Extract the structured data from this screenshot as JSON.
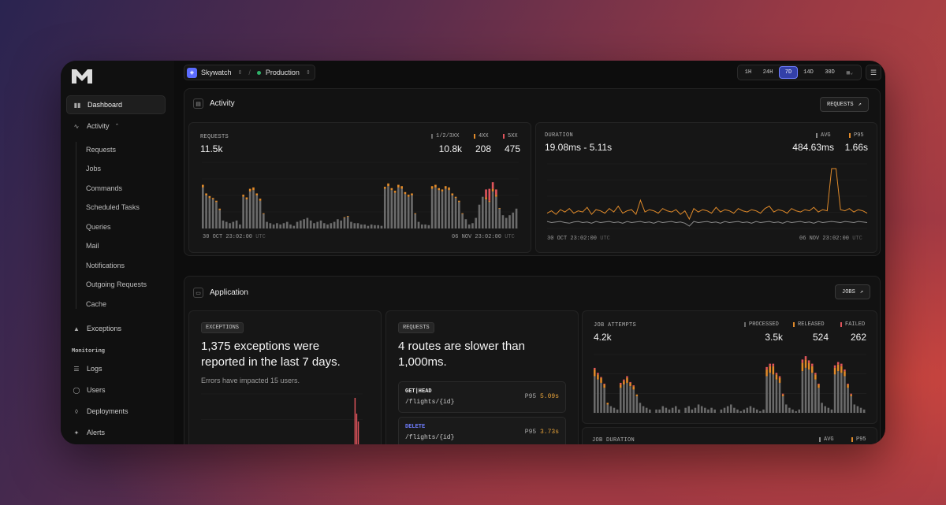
{
  "colors": {
    "accent": "#5b6cff",
    "gray": "#6b6b6b",
    "warn": "#e08a2a",
    "error": "#e0545c",
    "env": "#2fb36a"
  },
  "sidebar": {
    "items": [
      {
        "label": "Dashboard",
        "icon": "chart-icon"
      },
      {
        "label": "Activity",
        "icon": "activity-icon"
      },
      {
        "label": "Exceptions",
        "icon": "warning-icon"
      }
    ],
    "activity_sub": [
      "Requests",
      "Jobs",
      "Commands",
      "Scheduled Tasks",
      "Queries",
      "Mail",
      "Notifications",
      "Outgoing Requests",
      "Cache"
    ],
    "monitoring_label": "Monitoring",
    "monitoring": [
      {
        "label": "Logs",
        "icon": "logs-icon"
      },
      {
        "label": "Users",
        "icon": "user-icon"
      },
      {
        "label": "Deployments",
        "icon": "deploy-icon"
      },
      {
        "label": "Alerts",
        "icon": "alert-icon"
      }
    ]
  },
  "topbar": {
    "project": "Skywatch",
    "separator": "/",
    "environment": "Production",
    "ranges": [
      "1H",
      "24H",
      "7D",
      "14D",
      "30D"
    ],
    "active_range": "7D"
  },
  "activity": {
    "title": "Activity",
    "button": "REQUESTS",
    "requests": {
      "label": "REQUESTS",
      "total": "11.5k",
      "legend": [
        {
          "label": "1/2/3XX",
          "value": "10.8k"
        },
        {
          "label": "4XX",
          "value": "208"
        },
        {
          "label": "5XX",
          "value": "475"
        }
      ],
      "x_start": "30 OCT 23:02:00",
      "x_end": "06 NOV 23:02:00",
      "tz": "UTC",
      "chart_data": {
        "type": "bar",
        "stacked": true,
        "series": [
          {
            "name": "1/2/3XX",
            "values": [
              62,
              50,
              46,
              44,
              40,
              28,
              12,
              10,
              8,
              10,
              12,
              6,
              48,
              44,
              56,
              58,
              50,
              42,
              22,
              10,
              8,
              6,
              8,
              6,
              8,
              10,
              6,
              4,
              10,
              12,
              14,
              16,
              12,
              8,
              10,
              12,
              8,
              6,
              8,
              10,
              14,
              12,
              16,
              18,
              10,
              8,
              8,
              6,
              6,
              4,
              6,
              5,
              5,
              4,
              60,
              64,
              58,
              54,
              62,
              60,
              52,
              48,
              50,
              22,
              10,
              6,
              6,
              5,
              60,
              62,
              58,
              56,
              60,
              58,
              50,
              46,
              40,
              22,
              14,
              6,
              8,
              16,
              36,
              48,
              44,
              40,
              56,
              48,
              30,
              20,
              16,
              20,
              24,
              30
            ]
          },
          {
            "name": "4XX",
            "values": [
              4,
              3,
              3,
              2,
              2,
              2,
              0,
              0,
              0,
              0,
              0,
              0,
              3,
              3,
              4,
              4,
              3,
              3,
              1,
              0,
              0,
              0,
              0,
              0,
              0,
              0,
              0,
              0,
              0,
              0,
              0,
              0,
              0,
              0,
              0,
              0,
              0,
              0,
              0,
              0,
              0,
              0,
              1,
              1,
              0,
              0,
              0,
              0,
              0,
              0,
              0,
              0,
              0,
              0,
              3,
              4,
              3,
              3,
              4,
              4,
              3,
              3,
              3,
              1,
              0,
              0,
              0,
              0,
              4,
              4,
              3,
              3,
              4,
              4,
              3,
              2,
              2,
              1,
              0,
              0,
              0,
              0,
              0,
              0,
              3,
              2,
              4,
              3,
              1,
              0,
              0,
              0,
              0,
              0
            ]
          },
          {
            "name": "5XX",
            "values": [
              0,
              0,
              0,
              0,
              0,
              0,
              0,
              0,
              0,
              0,
              0,
              0,
              0,
              0,
              0,
              0,
              0,
              0,
              0,
              0,
              0,
              0,
              0,
              0,
              0,
              0,
              0,
              0,
              0,
              0,
              0,
              0,
              0,
              0,
              0,
              0,
              0,
              0,
              0,
              0,
              0,
              0,
              0,
              0,
              0,
              0,
              0,
              0,
              0,
              0,
              0,
              0,
              0,
              0,
              0,
              0,
              0,
              0,
              0,
              0,
              0,
              0,
              0,
              0,
              0,
              0,
              0,
              0,
              0,
              0,
              0,
              0,
              0,
              0,
              0,
              0,
              0,
              0,
              0,
              0,
              0,
              0,
              0,
              0,
              12,
              18,
              10,
              8,
              0,
              0,
              0,
              0,
              0,
              0
            ]
          }
        ]
      }
    },
    "duration": {
      "label": "DURATION",
      "range": "19.08ms - 5.11s",
      "legend": [
        {
          "label": "AVG",
          "value": "484.63ms"
        },
        {
          "label": "P95",
          "value": "1.66s"
        }
      ],
      "x_start": "30 OCT 23:02:00",
      "x_end": "06 NOV 23:02:00",
      "tz": "UTC",
      "chart_data": {
        "type": "line",
        "series": [
          {
            "name": "P95",
            "values": [
              1.3,
              1.5,
              1.2,
              1.6,
              1.4,
              1.7,
              1.3,
              1.5,
              1.4,
              1.8,
              1.2,
              1.6,
              1.5,
              1.3,
              1.7,
              1.4,
              1.9,
              1.3,
              1.5,
              1.6,
              1.2,
              2.4,
              1.4,
              1.6,
              1.5,
              1.3,
              1.7,
              1.5,
              1.4,
              1.6,
              1.2,
              1.5,
              0.8,
              1.7,
              1.4,
              1.6,
              1.5,
              1.3,
              1.8,
              1.4,
              1.6,
              1.5,
              1.3,
              1.7,
              1.5,
              1.4,
              1.6,
              1.5,
              1.3,
              1.7,
              1.9,
              1.4,
              1.6,
              1.5,
              1.3,
              1.7,
              1.5,
              1.4,
              1.6,
              1.5,
              1.8,
              1.4,
              1.6,
              1.5,
              5.1,
              5.1,
              1.6,
              1.5,
              1.7,
              1.4,
              1.6,
              1.5,
              1.3
            ]
          },
          {
            "name": "AVG",
            "values": [
              0.6,
              0.5,
              0.55,
              0.6,
              0.5,
              0.45,
              0.55,
              0.6,
              0.5,
              0.55,
              0.45,
              0.6,
              0.5,
              0.55,
              0.6,
              0.5,
              0.55,
              0.45,
              0.6,
              0.5,
              0.55,
              0.6,
              0.5,
              0.55,
              0.45,
              0.6,
              0.5,
              0.55,
              0.6,
              0.5,
              0.55,
              0.45,
              0.2,
              0.6,
              0.5,
              0.55,
              0.6,
              0.5,
              0.55,
              0.45,
              0.6,
              0.5,
              0.55,
              0.6,
              0.5,
              0.55,
              0.45,
              0.6,
              0.5,
              0.55,
              0.6,
              0.5,
              0.55,
              0.45,
              0.6,
              0.5,
              0.55,
              0.6,
              0.5,
              0.55,
              0.45,
              0.6,
              0.5,
              0.55,
              0.6,
              0.55,
              0.5,
              0.6,
              0.55,
              0.5,
              0.6,
              0.55,
              0.5
            ]
          }
        ],
        "ylim": [
          0,
          5.5
        ]
      }
    }
  },
  "application": {
    "title": "Application",
    "button": "JOBS",
    "exceptions": {
      "tag": "EXCEPTIONS",
      "headline": "1,375 exceptions were reported in the last 7 days.",
      "sub": "Errors have impacted 15 users.",
      "chart_data": {
        "type": "bar",
        "values": [
          0,
          0,
          0,
          0,
          0,
          0,
          0,
          0,
          0,
          0,
          0,
          0,
          0,
          0,
          0,
          0,
          0,
          0,
          0,
          0,
          0,
          0,
          0,
          0,
          0,
          0,
          0,
          0,
          0,
          0,
          0,
          0,
          0,
          0,
          0,
          0,
          0,
          0,
          0,
          0,
          0,
          0,
          0,
          0,
          0,
          0,
          0,
          0,
          0,
          0,
          0,
          0,
          0,
          0,
          0,
          0,
          0,
          0,
          0,
          0,
          0,
          0,
          0,
          0,
          0,
          0,
          0,
          0,
          0,
          0,
          0,
          0,
          0,
          0,
          0,
          0,
          0,
          0,
          0,
          0,
          0,
          0,
          0,
          0,
          0,
          0,
          0,
          0,
          0,
          0,
          0,
          0,
          0,
          0,
          60,
          40,
          30,
          0,
          0
        ]
      }
    },
    "requests": {
      "tag": "REQUESTS",
      "headline": "4 routes are slower than 1,000ms.",
      "routes": [
        {
          "method": "GET|HEAD",
          "path": "/flights/{id}",
          "metric": "P95",
          "value": "5.09s"
        },
        {
          "method": "DELETE",
          "path": "/flights/{id}",
          "metric": "P95",
          "value": "3.73s"
        }
      ]
    },
    "jobs": {
      "label": "JOB ATTEMPTS",
      "total": "4.2k",
      "legend": [
        {
          "label": "PROCESSED",
          "value": "3.5k"
        },
        {
          "label": "RELEASED",
          "value": "524"
        },
        {
          "label": "FAILED",
          "value": "262"
        }
      ],
      "chart_data": {
        "type": "bar",
        "stacked": true,
        "series": [
          {
            "name": "PROCESSED",
            "values": [
              44,
              40,
              36,
              30,
              10,
              8,
              6,
              4,
              30,
              34,
              36,
              32,
              28,
              20,
              12,
              8,
              6,
              4,
              0,
              4,
              4,
              8,
              6,
              4,
              6,
              8,
              4,
              0,
              6,
              8,
              4,
              6,
              10,
              8,
              6,
              4,
              6,
              4,
              0,
              4,
              6,
              8,
              10,
              6,
              4,
              2,
              4,
              6,
              8,
              6,
              4,
              2,
              4,
              44,
              48,
              46,
              40,
              36,
              20,
              10,
              6,
              4,
              2,
              4,
              50,
              54,
              52,
              48,
              40,
              30,
              12,
              8,
              6,
              4,
              46,
              50,
              48,
              44,
              30,
              20,
              10,
              8,
              6,
              4
            ]
          },
          {
            "name": "RELEASED",
            "values": [
              8,
              6,
              6,
              4,
              2,
              0,
              0,
              0,
              4,
              4,
              6,
              4,
              4,
              2,
              0,
              0,
              0,
              0,
              0,
              0,
              0,
              0,
              0,
              0,
              0,
              0,
              0,
              0,
              0,
              0,
              0,
              0,
              0,
              0,
              0,
              0,
              0,
              0,
              0,
              0,
              0,
              0,
              0,
              0,
              0,
              0,
              0,
              0,
              0,
              0,
              0,
              0,
              0,
              8,
              8,
              10,
              6,
              6,
              2,
              0,
              0,
              0,
              0,
              0,
              10,
              10,
              8,
              8,
              6,
              4,
              0,
              0,
              0,
              0,
              8,
              8,
              8,
              6,
              4,
              2,
              0,
              0,
              0,
              0
            ]
          },
          {
            "name": "FAILED",
            "values": [
              2,
              2,
              1,
              1,
              0,
              0,
              0,
              0,
              2,
              2,
              2,
              1,
              1,
              0,
              0,
              0,
              0,
              0,
              0,
              0,
              0,
              0,
              0,
              0,
              0,
              0,
              0,
              0,
              0,
              0,
              0,
              0,
              0,
              0,
              0,
              0,
              0,
              0,
              0,
              0,
              0,
              0,
              0,
              0,
              0,
              0,
              0,
              0,
              0,
              0,
              0,
              0,
              0,
              3,
              3,
              3,
              2,
              2,
              1,
              0,
              0,
              0,
              0,
              0,
              4,
              4,
              3,
              3,
              2,
              1,
              0,
              0,
              0,
              0,
              3,
              3,
              3,
              2,
              1,
              1,
              0,
              0,
              0,
              0
            ]
          }
        ]
      }
    },
    "job_duration": {
      "label": "JOB DURATION",
      "legend": [
        {
          "label": "AVG"
        },
        {
          "label": "P95"
        }
      ]
    }
  }
}
